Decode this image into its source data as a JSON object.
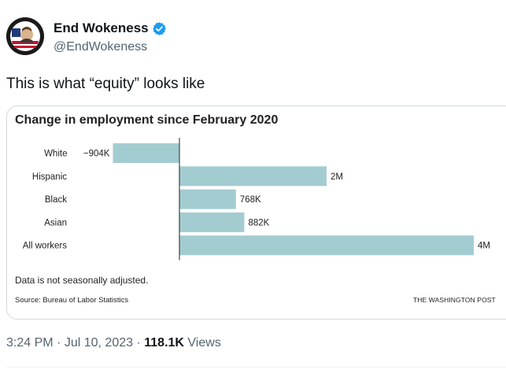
{
  "tweet": {
    "display_name": "End Wokeness",
    "handle": "@EndWokeness",
    "text": "This is what “equity” looks like",
    "time": "3:24 PM",
    "separator": "·",
    "date": "Jul 10, 2023",
    "views_count": "118.1K",
    "views_label": "Views",
    "verified_color": "#1d9bf0"
  },
  "card": {
    "note": "Data is not seasonally adjusted.",
    "source": "Source: Bureau of Labor Statistics",
    "credit": "THE WASHINGTON POST"
  },
  "chart_data": {
    "type": "bar",
    "orientation": "horizontal",
    "title": "Change in employment since February 2020",
    "categories": [
      "White",
      "Hispanic",
      "Black",
      "Asian",
      "All workers"
    ],
    "values": [
      -904000,
      2000000,
      768000,
      882000,
      4000000
    ],
    "value_labels": [
      "−904K",
      "2M",
      "768K",
      "882K",
      "4M"
    ],
    "bar_color": "#a3ccd1",
    "xlim": [
      -950000,
      4000000
    ],
    "grid": false,
    "legend": "none"
  }
}
